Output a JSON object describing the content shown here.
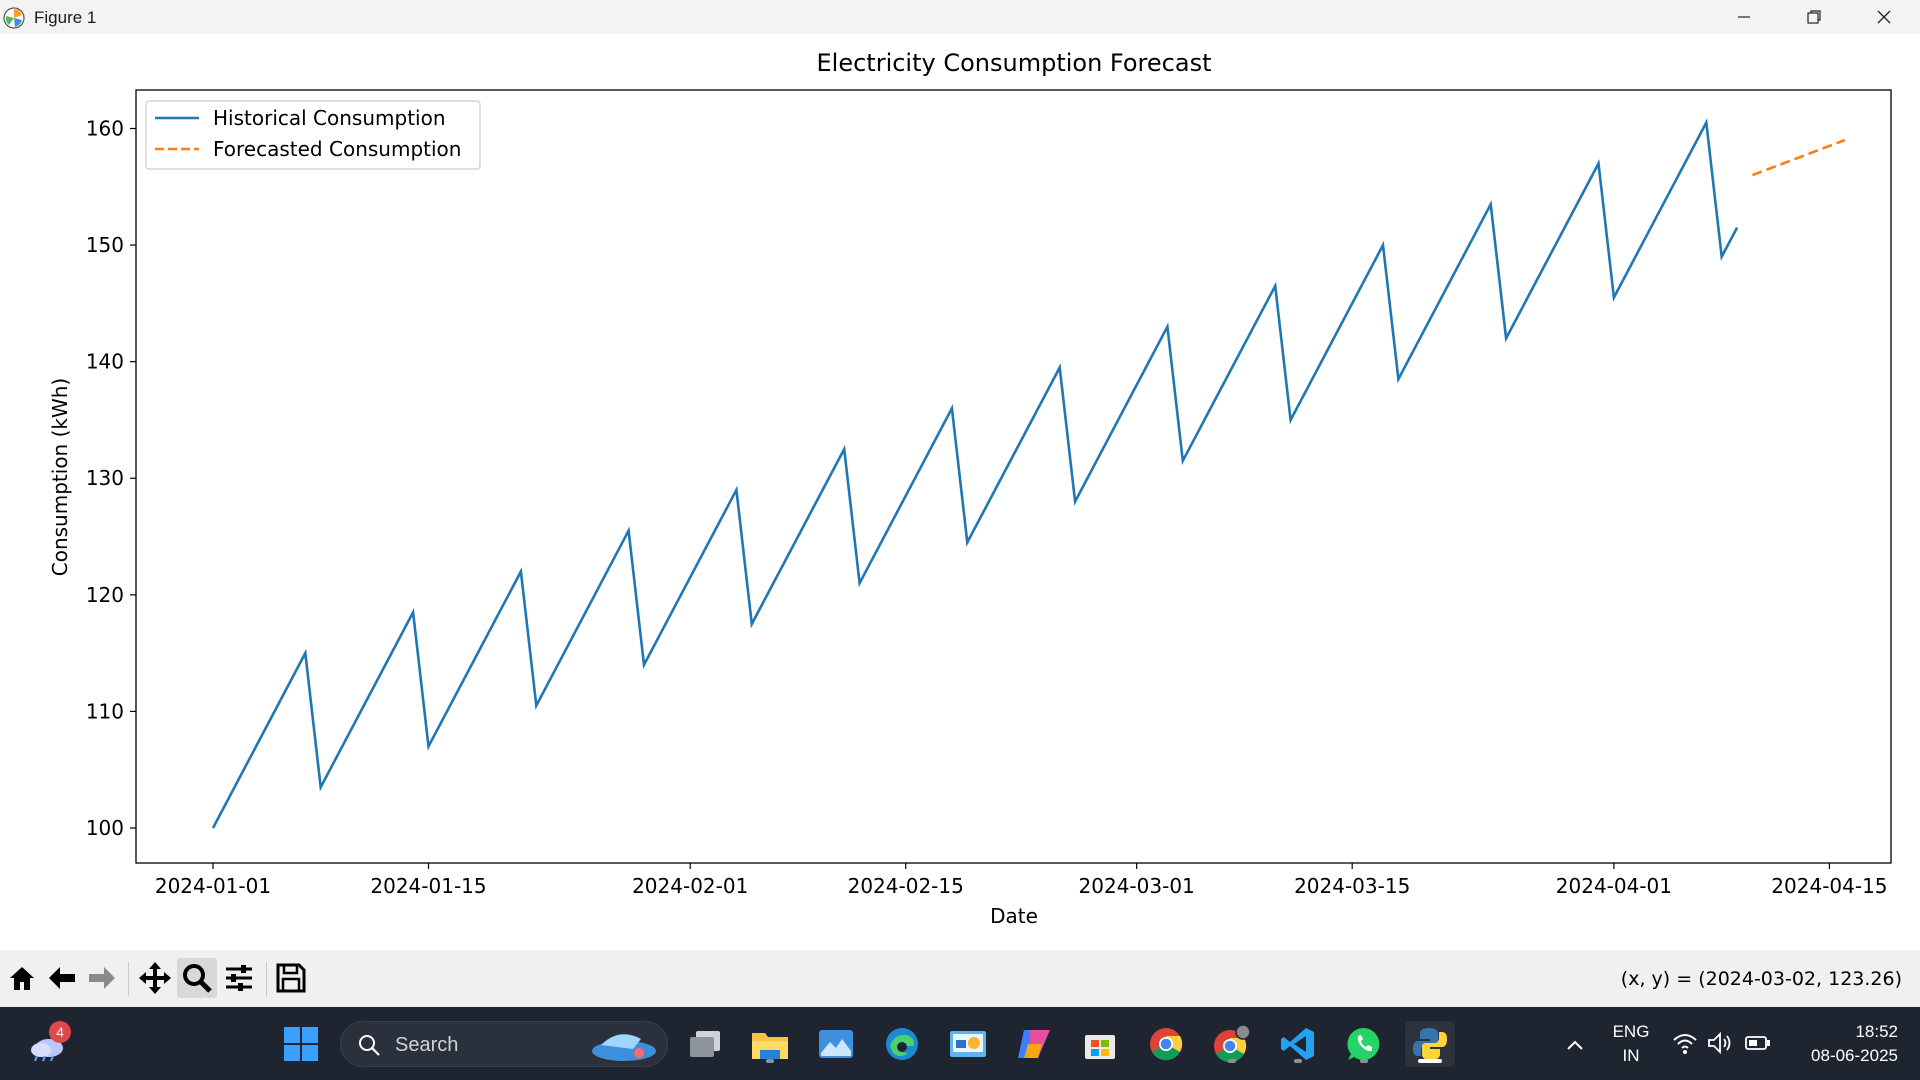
{
  "window": {
    "title": "Figure 1"
  },
  "chart_data": {
    "type": "line",
    "title": "Electricity Consumption Forecast",
    "xlabel": "Date",
    "ylabel": "Consumption (kWh)",
    "xlim": [
      "2023-12-27",
      "2024-04-19"
    ],
    "ylim": [
      97,
      163.3
    ],
    "x_ticks": [
      "2024-01-01",
      "2024-01-15",
      "2024-02-01",
      "2024-02-15",
      "2024-03-01",
      "2024-03-15",
      "2024-04-01",
      "2024-04-15"
    ],
    "y_ticks": [
      100,
      110,
      120,
      130,
      140,
      150,
      160
    ],
    "grid": false,
    "legend_position": "upper-left",
    "series": [
      {
        "name": "Historical Consumption",
        "color": "#1f77b4",
        "style": "solid",
        "points": [
          [
            "2024-01-01",
            100.0
          ],
          [
            "2024-01-07",
            115.0
          ],
          [
            "2024-01-08",
            103.5
          ],
          [
            "2024-01-14",
            118.5
          ],
          [
            "2024-01-15",
            107.0
          ],
          [
            "2024-01-21",
            122.0
          ],
          [
            "2024-01-22",
            110.5
          ],
          [
            "2024-01-28",
            125.5
          ],
          [
            "2024-01-29",
            114.0
          ],
          [
            "2024-02-04",
            129.0
          ],
          [
            "2024-02-05",
            117.5
          ],
          [
            "2024-02-11",
            132.5
          ],
          [
            "2024-02-12",
            121.0
          ],
          [
            "2024-02-18",
            136.0
          ],
          [
            "2024-02-19",
            124.5
          ],
          [
            "2024-02-25",
            139.5
          ],
          [
            "2024-02-26",
            128.0
          ],
          [
            "2024-03-03",
            143.0
          ],
          [
            "2024-03-04",
            131.5
          ],
          [
            "2024-03-10",
            146.5
          ],
          [
            "2024-03-11",
            135.0
          ],
          [
            "2024-03-17",
            150.0
          ],
          [
            "2024-03-18",
            138.5
          ],
          [
            "2024-03-24",
            153.5
          ],
          [
            "2024-03-25",
            142.0
          ],
          [
            "2024-03-31",
            157.0
          ],
          [
            "2024-04-01",
            145.5
          ],
          [
            "2024-04-07",
            160.5
          ],
          [
            "2024-04-08",
            149.0
          ],
          [
            "2024-04-09",
            151.5
          ]
        ]
      },
      {
        "name": "Forecasted Consumption",
        "color": "#ff7f0e",
        "style": "dashed",
        "points": [
          [
            "2024-04-10",
            156.0
          ],
          [
            "2024-04-16",
            159.0
          ]
        ]
      }
    ]
  },
  "toolbar": {
    "buttons": [
      "home-icon",
      "back-icon",
      "forward-icon",
      "pan-icon",
      "zoom-icon",
      "configure-icon",
      "save-icon"
    ],
    "coordinates": "(x, y) = (2024-03-02, 123.26)"
  },
  "taskbar": {
    "weather_badge": "4",
    "search_label": "Search",
    "lang_line1": "ENG",
    "lang_line2": "IN",
    "time": "18:52",
    "date": "08-06-2025"
  }
}
